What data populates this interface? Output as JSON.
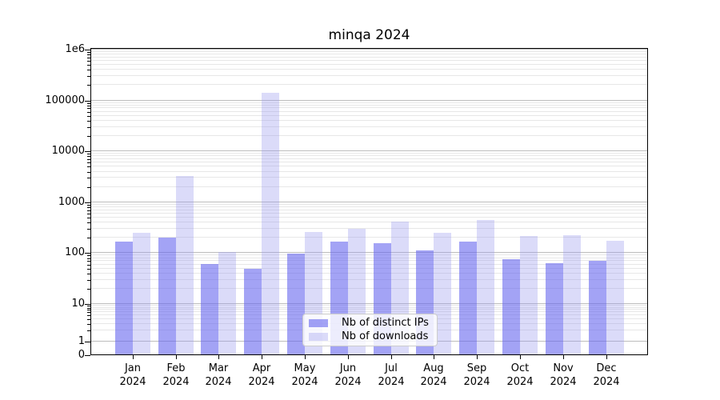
{
  "chart_data": {
    "type": "bar",
    "title": "minqa 2024",
    "xlabel": "",
    "ylabel": "",
    "yscale": "symlog",
    "ylim": [
      0,
      1000000
    ],
    "grid": "both",
    "grid_major_color": "#bdbdbd",
    "grid_minor_color": "#e7e7e7",
    "legend_position": "lower center",
    "categories": [
      "Jan\n2024",
      "Feb\n2024",
      "Mar\n2024",
      "Apr\n2024",
      "May\n2024",
      "Jun\n2024",
      "Jul\n2024",
      "Aug\n2024",
      "Sep\n2024",
      "Oct\n2024",
      "Nov\n2024",
      "Dec\n2024"
    ],
    "yticks": [
      1000000,
      100000,
      10000,
      1000,
      100,
      10,
      1,
      0
    ],
    "ytick_labels": [
      "1e6",
      "100000",
      "10000",
      "1000",
      "100",
      "10",
      "1",
      "0"
    ],
    "series": [
      {
        "name": "Nb of distinct IPs",
        "color": "#6666EE99",
        "values": [
          165,
          195,
          58,
          48,
          93,
          163,
          153,
          110,
          165,
          72,
          61,
          69
        ]
      },
      {
        "name": "Nb of downloads",
        "color": "#9999EE59",
        "values": [
          240,
          3200,
          103,
          135000,
          250,
          285,
          400,
          240,
          430,
          210,
          216,
          168
        ]
      }
    ]
  }
}
